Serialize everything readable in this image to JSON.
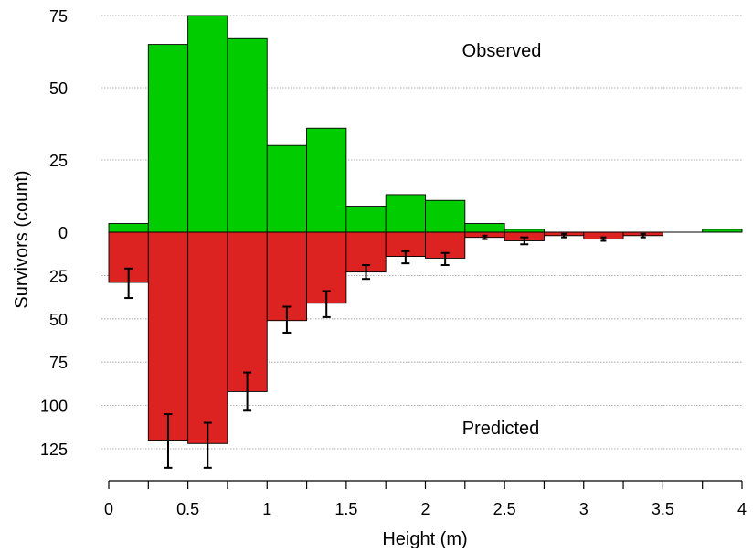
{
  "chart_data": {
    "type": "bar",
    "xlabel": "Height (m)",
    "ylabel": "Survivors (count)",
    "xlim": [
      0,
      4
    ],
    "x_ticks": [
      "0",
      "0.5",
      "1",
      "1.5",
      "2",
      "2.5",
      "3",
      "3.5",
      "4"
    ],
    "y_ticks_top": [
      "75",
      "50",
      "25",
      "0"
    ],
    "y_ticks_bottom": [
      "25",
      "50",
      "75",
      "100",
      "125"
    ],
    "observed_ylim": [
      0,
      75
    ],
    "predicted_ylim": [
      0,
      125
    ],
    "bin_width": 0.25,
    "bins_start": [
      0,
      0.25,
      0.5,
      0.75,
      1.0,
      1.25,
      1.5,
      1.75,
      2.0,
      2.25,
      2.5,
      2.75,
      3.0,
      3.25,
      3.5,
      3.75
    ],
    "grid": true,
    "series": [
      {
        "name": "Observed",
        "color": "#00cc00",
        "values": [
          3,
          65,
          75,
          67,
          30,
          36,
          9,
          13,
          11,
          3,
          1,
          0,
          0,
          0,
          0,
          1
        ]
      },
      {
        "name": "Predicted",
        "color": "#dd2222",
        "values": [
          29,
          120,
          122,
          92,
          51,
          41,
          23,
          14,
          15,
          3,
          5,
          2,
          4,
          2,
          0,
          0
        ],
        "error_low": [
          21,
          105,
          110,
          81,
          43,
          34,
          19,
          11,
          12,
          2,
          3,
          1,
          3,
          1,
          0,
          0
        ],
        "error_high": [
          38,
          136,
          136,
          103,
          58,
          49,
          27,
          18,
          19,
          4,
          7,
          3,
          5,
          3,
          0,
          0
        ]
      }
    ]
  }
}
